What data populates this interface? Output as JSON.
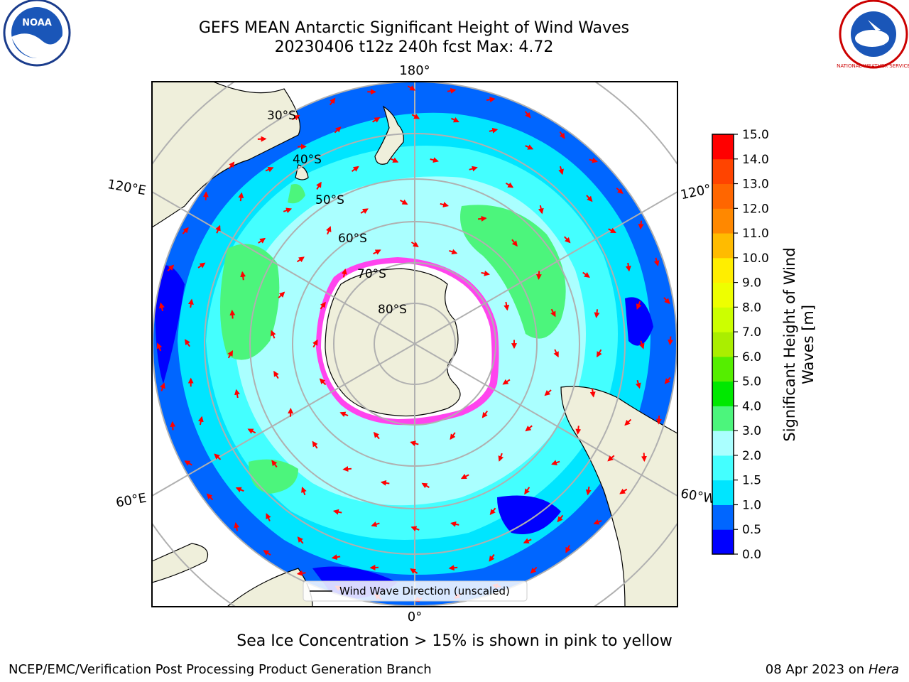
{
  "title": {
    "line1": "GEFS MEAN Antarctic Significant Height of Wind Waves",
    "line2": "20230406 t12z 240h fcst   Max: 4.72"
  },
  "map": {
    "lon_labels": {
      "top": "180°",
      "bottom": "0°",
      "upper_left": "120°E",
      "upper_right": "120°",
      "lower_left": "60°E",
      "lower_right": "60°W"
    },
    "lat_labels": [
      "30°S",
      "40°S",
      "50°S",
      "60°S",
      "70°S",
      "80°S"
    ],
    "legend_label": "Wind Wave Direction (unscaled)",
    "colors": {
      "land": "#efefdb",
      "ice_edge": "#ff44ee",
      "arrow": "#ff0000",
      "grid": "#b0b0b0"
    }
  },
  "colorbar": {
    "label_line1": "Significant Height of Wind",
    "label_line2": "Waves [m]",
    "ticks": [
      "0.0",
      "0.5",
      "1.0",
      "1.5",
      "2.0",
      "3.0",
      "4.0",
      "5.0",
      "6.0",
      "7.0",
      "8.0",
      "9.0",
      "10.0",
      "11.0",
      "12.0",
      "13.0",
      "14.0",
      "15.0"
    ],
    "colors": [
      "#0000ff",
      "#0066ff",
      "#00e5ff",
      "#44ffff",
      "#aaffff",
      "#4cf57c",
      "#00e800",
      "#55ee00",
      "#aaee00",
      "#ccff00",
      "#eeff00",
      "#ffee00",
      "#ffbb00",
      "#ff8800",
      "#ff6600",
      "#ff4400",
      "#ff0000"
    ]
  },
  "caption": "Sea Ice Concentration > 15% is shown in pink to yellow",
  "footer": {
    "left": "NCEP/EMC/Verification Post Processing Product Generation Branch",
    "right_date": "08 Apr 2023 on",
    "right_host": "Hera"
  },
  "logos": {
    "left": "NOAA",
    "right": "NATIONAL WEATHER SERVICE"
  }
}
